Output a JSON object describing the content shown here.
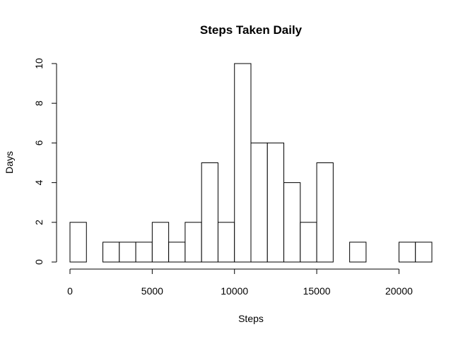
{
  "chart_data": {
    "type": "bar",
    "subtype": "histogram",
    "title": "Steps Taken Daily",
    "xlabel": "Steps",
    "ylabel": "Days",
    "bin_width": 1000,
    "bins": [
      {
        "start": 0,
        "end": 1000,
        "count": 2
      },
      {
        "start": 1000,
        "end": 2000,
        "count": 0
      },
      {
        "start": 2000,
        "end": 3000,
        "count": 1
      },
      {
        "start": 3000,
        "end": 4000,
        "count": 1
      },
      {
        "start": 4000,
        "end": 5000,
        "count": 1
      },
      {
        "start": 5000,
        "end": 6000,
        "count": 2
      },
      {
        "start": 6000,
        "end": 7000,
        "count": 1
      },
      {
        "start": 7000,
        "end": 8000,
        "count": 2
      },
      {
        "start": 8000,
        "end": 9000,
        "count": 5
      },
      {
        "start": 9000,
        "end": 10000,
        "count": 2
      },
      {
        "start": 10000,
        "end": 11000,
        "count": 10
      },
      {
        "start": 11000,
        "end": 12000,
        "count": 6
      },
      {
        "start": 12000,
        "end": 13000,
        "count": 6
      },
      {
        "start": 13000,
        "end": 14000,
        "count": 4
      },
      {
        "start": 14000,
        "end": 15000,
        "count": 2
      },
      {
        "start": 15000,
        "end": 16000,
        "count": 5
      },
      {
        "start": 16000,
        "end": 17000,
        "count": 0
      },
      {
        "start": 17000,
        "end": 18000,
        "count": 1
      },
      {
        "start": 18000,
        "end": 19000,
        "count": 0
      },
      {
        "start": 19000,
        "end": 20000,
        "count": 0
      },
      {
        "start": 20000,
        "end": 21000,
        "count": 1
      },
      {
        "start": 21000,
        "end": 22000,
        "count": 1
      }
    ],
    "xlim": [
      0,
      22000
    ],
    "ylim": [
      0,
      10
    ],
    "x_ticks": [
      0,
      5000,
      10000,
      15000,
      20000
    ],
    "y_ticks": [
      0,
      2,
      4,
      6,
      8,
      10
    ],
    "grid": false,
    "legend": "none",
    "colors": {
      "bar_fill": "#ffffff",
      "bar_stroke": "#000000"
    }
  }
}
